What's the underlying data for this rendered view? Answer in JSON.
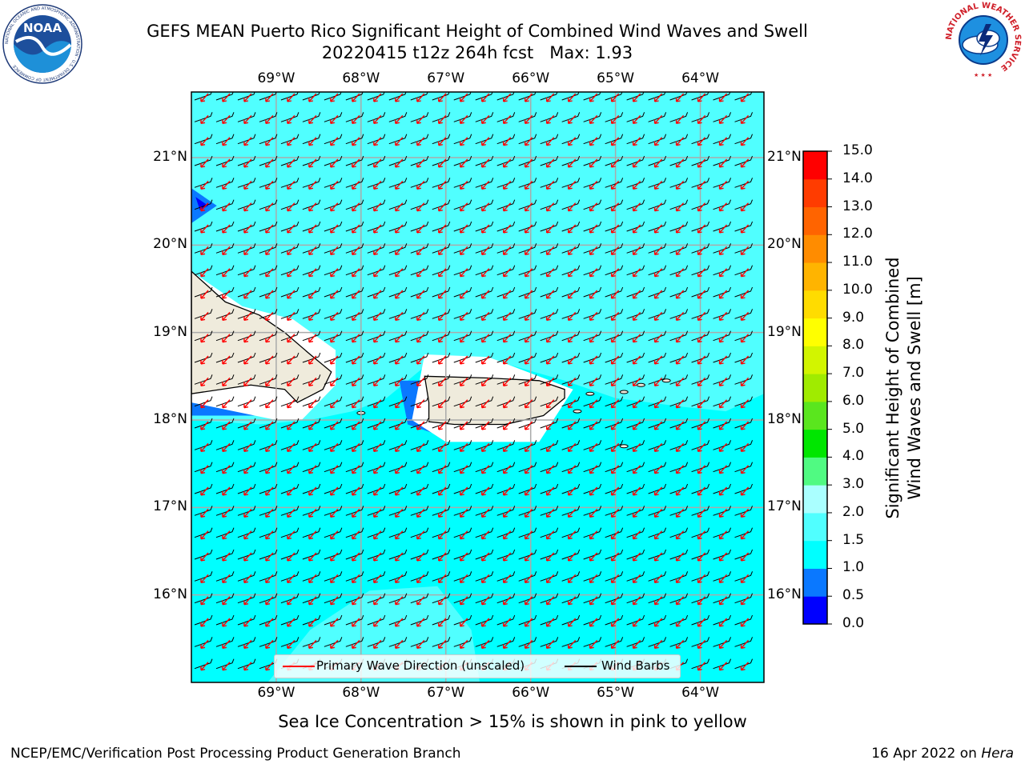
{
  "header": {
    "title_line1": "GEFS MEAN Puerto Rico Significant Height of Combined Wind Waves and Swell",
    "title_line2": "20220415 t12z 264h fcst   Max: 1.93",
    "noaa_logo_text": "NOAA",
    "noaa_ring_text": "NATIONAL OCEANIC AND ATMOSPHERIC ADMINISTRATION · U.S. DEPARTMENT OF COMMERCE",
    "nws_ring_text": "NATIONAL WEATHER SERVICE"
  },
  "map": {
    "lon_labels": [
      "69°W",
      "68°W",
      "67°W",
      "66°W",
      "65°W",
      "64°W"
    ],
    "lat_labels": [
      "21°N",
      "20°N",
      "19°N",
      "18°N",
      "17°N",
      "16°N"
    ],
    "extent": {
      "lon_min": -70.0,
      "lon_max": -63.25,
      "lat_min": 15.0,
      "lat_max": 21.75
    },
    "field_max": 1.93,
    "primary_wave_direction_color": "#ff0000",
    "wind_barb_color": "#000000",
    "land_color": "#efebdc",
    "legend": {
      "wave_label": "Primary Wave Direction (unscaled)",
      "barb_label": "Wind Barbs"
    }
  },
  "colorbar": {
    "title_line1": "Significant Height of Combined",
    "title_line2": "Wind Waves and Swell [m]",
    "tick_labels": [
      "0.0",
      "0.5",
      "1.0",
      "1.5",
      "2.0",
      "3.0",
      "4.0",
      "5.0",
      "6.0",
      "7.0",
      "8.0",
      "9.0",
      "10.0",
      "11.0",
      "12.0",
      "13.0",
      "14.0",
      "15.0"
    ],
    "colors": [
      "#0000ff",
      "#0a78ff",
      "#00ffff",
      "#50ffff",
      "#aaffff",
      "#50fa82",
      "#00e600",
      "#5ae61e",
      "#a0eb00",
      "#d2f500",
      "#ffff00",
      "#ffdc00",
      "#ffb400",
      "#ff8c00",
      "#ff6400",
      "#ff3c00",
      "#ff0000"
    ]
  },
  "subtitle": "Sea Ice Concentration > 15% is shown in pink to yellow",
  "footer": {
    "left": "NCEP/EMC/Verification Post Processing Product Generation Branch",
    "right_date": "16 Apr 2022 on ",
    "right_host": "Hera"
  }
}
